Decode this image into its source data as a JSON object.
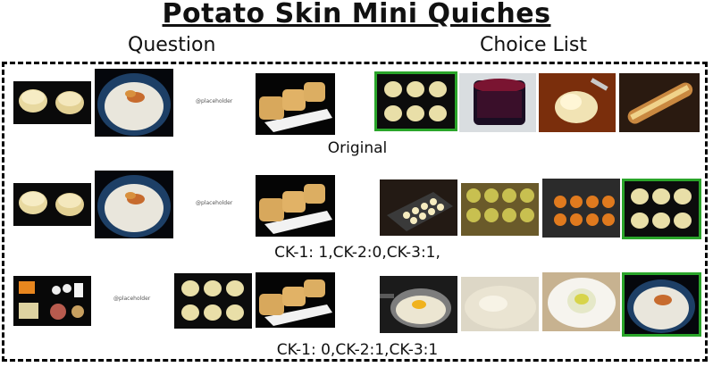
{
  "title": "Potato Skin Mini Quiches",
  "headers": {
    "question": "Question",
    "choices": "Choice List"
  },
  "placeholder": "@placeholder",
  "rows": [
    {
      "caption": "Original",
      "selected_choice": 1
    },
    {
      "caption": "CK-1: 1,CK-2:0,CK-3:1,",
      "selected_choice": 4
    },
    {
      "caption": "CK-1: 0,CK-2:1,CK-3:1",
      "selected_choice": 4
    }
  ],
  "colors": {
    "selected_border": "#2aa52a",
    "frame": "#000000"
  }
}
